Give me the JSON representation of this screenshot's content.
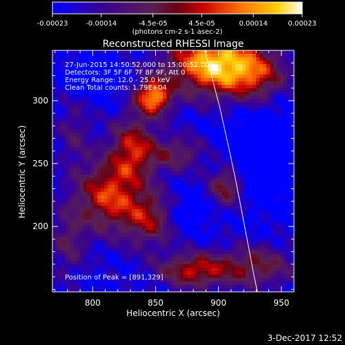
{
  "chart_data": {
    "type": "heatmap",
    "title": "Reconstructed RHESSI Image",
    "xlabel": "Heliocentric X (arcsec)",
    "ylabel": "Heliocentric Y (arcsec)",
    "xlim": [
      768,
      960
    ],
    "ylim": [
      148,
      340
    ],
    "x_ticks": [
      800,
      850,
      900,
      950
    ],
    "y_ticks": [
      200,
      250,
      300
    ],
    "colorbar": {
      "vmin": -0.00023,
      "vmax": 0.00023,
      "ticks": [
        "-0.00023",
        "-0.00014",
        "-4.5e-05",
        "4.5e-05",
        "0.00014",
        "0.00023"
      ],
      "tick_values": [
        -0.00023,
        -0.00014,
        -4.5e-05,
        4.5e-05,
        0.00014,
        0.00023
      ],
      "units_label": "(photons cm-2 s-1 asec-2)"
    },
    "limb_curve": {
      "x": [
        889,
        893,
        897,
        901,
        905,
        909,
        913,
        917,
        921,
        925,
        928,
        931
      ],
      "y": [
        340,
        326,
        310,
        295,
        277,
        259,
        240,
        220,
        199,
        178,
        162,
        148
      ]
    },
    "peak": {
      "x": 891,
      "y": 329
    },
    "blobs": [
      {
        "x": 812,
        "y": 224,
        "sx": 18,
        "sy": 20,
        "amp": 0.95
      },
      {
        "x": 832,
        "y": 262,
        "sx": 13,
        "sy": 18,
        "amp": 0.85
      },
      {
        "x": 848,
        "y": 303,
        "sx": 10,
        "sy": 10,
        "amp": 1.2
      },
      {
        "x": 895,
        "y": 330,
        "sx": 25,
        "sy": 18,
        "amp": 1.35
      },
      {
        "x": 930,
        "y": 320,
        "sx": 18,
        "sy": 15,
        "amp": 0.7
      },
      {
        "x": 845,
        "y": 206,
        "sx": 14,
        "sy": 16,
        "amp": 0.7
      },
      {
        "x": 880,
        "y": 165,
        "sx": 20,
        "sy": 10,
        "amp": 0.85
      },
      {
        "x": 930,
        "y": 168,
        "sx": 22,
        "sy": 12,
        "amp": 0.65
      },
      {
        "x": 906,
        "y": 232,
        "sx": 10,
        "sy": 12,
        "amp": 0.75
      },
      {
        "x": 785,
        "y": 275,
        "sx": 10,
        "sy": 20,
        "amp": 0.35
      },
      {
        "x": 780,
        "y": 188,
        "sx": 10,
        "sy": 20,
        "amp": 0.45
      },
      {
        "x": 868,
        "y": 258,
        "sx": 16,
        "sy": 10,
        "amp": 0.55
      },
      {
        "x": 800,
        "y": 318,
        "sx": 14,
        "sy": 10,
        "amp": -0.35
      },
      {
        "x": 935,
        "y": 260,
        "sx": 22,
        "sy": 26,
        "amp": -0.4
      },
      {
        "x": 875,
        "y": 212,
        "sx": 12,
        "sy": 10,
        "amp": -0.25
      }
    ]
  },
  "annotations": {
    "time_line": "27-Jun-2015 14:50:52.000 to 15:00:52.000",
    "detectors_line": "Detectors: 3F 5F 6F 7F 8F 9F, Att 0",
    "energy_line": "Energy Range: 12.0 - 25.0 keV",
    "clean_line": "Clean    Total counts: 1.79E+04",
    "peak_line": "Position of Peak = [891,329]"
  },
  "footer": {
    "date": "3-Dec-2017 12:52"
  }
}
